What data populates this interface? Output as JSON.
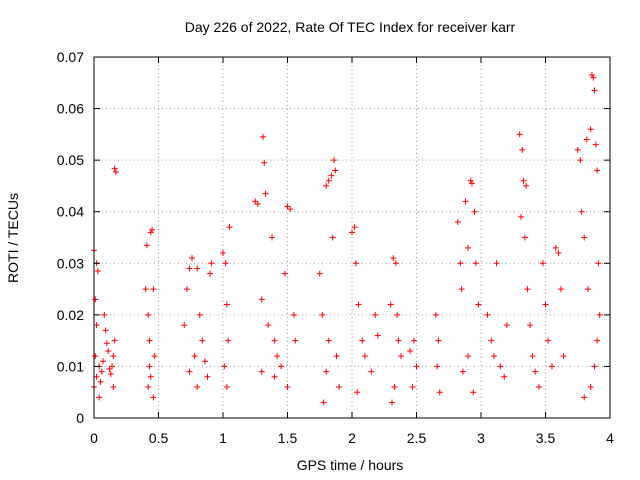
{
  "chart_data": {
    "type": "scatter",
    "title": "Day 226 of 2022, Rate Of TEC Index for receiver karr",
    "xlabel": "GPS time / hours",
    "ylabel": "ROTI / TECUs",
    "xlim": [
      0,
      4
    ],
    "ylim": [
      0,
      0.07
    ],
    "x_ticks": [
      0,
      0.5,
      1,
      1.5,
      2,
      2.5,
      3,
      3.5,
      4
    ],
    "x_tick_labels": [
      "0",
      "0.5",
      "1",
      "1.5",
      "2",
      "2.5",
      "3",
      "3.5",
      "4"
    ],
    "y_ticks": [
      0,
      0.01,
      0.02,
      0.03,
      0.04,
      0.05,
      0.06,
      0.07
    ],
    "y_tick_labels": [
      "0",
      "0.01",
      "0.02",
      "0.03",
      "0.04",
      "0.05",
      "0.06",
      "0.07"
    ],
    "grid": true,
    "marker": "plus",
    "color": "#ff0000",
    "series": [
      {
        "name": "ROTI",
        "points": [
          [
            0.0,
            0.0325
          ],
          [
            0.01,
            0.023
          ],
          [
            0.02,
            0.03
          ],
          [
            0.03,
            0.0285
          ],
          [
            0.02,
            0.018
          ],
          [
            0.01,
            0.012
          ],
          [
            0.0,
            0.006
          ],
          [
            0.02,
            0.008
          ],
          [
            0.04,
            0.01
          ],
          [
            0.05,
            0.007
          ],
          [
            0.06,
            0.009
          ],
          [
            0.07,
            0.011
          ],
          [
            0.08,
            0.02
          ],
          [
            0.09,
            0.017
          ],
          [
            0.1,
            0.0145
          ],
          [
            0.11,
            0.013
          ],
          [
            0.12,
            0.0095
          ],
          [
            0.13,
            0.0085
          ],
          [
            0.14,
            0.01
          ],
          [
            0.15,
            0.012
          ],
          [
            0.16,
            0.0484
          ],
          [
            0.17,
            0.0477
          ],
          [
            0.16,
            0.015
          ],
          [
            0.15,
            0.006
          ],
          [
            0.04,
            0.004
          ],
          [
            0.4,
            0.025
          ],
          [
            0.41,
            0.0335
          ],
          [
            0.42,
            0.02
          ],
          [
            0.43,
            0.015
          ],
          [
            0.44,
            0.036
          ],
          [
            0.45,
            0.0365
          ],
          [
            0.46,
            0.025
          ],
          [
            0.47,
            0.012
          ],
          [
            0.44,
            0.008
          ],
          [
            0.42,
            0.006
          ],
          [
            0.46,
            0.004
          ],
          [
            0.43,
            0.01
          ],
          [
            0.7,
            0.018
          ],
          [
            0.72,
            0.025
          ],
          [
            0.74,
            0.029
          ],
          [
            0.76,
            0.031
          ],
          [
            0.78,
            0.012
          ],
          [
            0.8,
            0.029
          ],
          [
            0.82,
            0.02
          ],
          [
            0.84,
            0.015
          ],
          [
            0.86,
            0.011
          ],
          [
            0.88,
            0.008
          ],
          [
            0.9,
            0.028
          ],
          [
            0.91,
            0.03
          ],
          [
            0.74,
            0.009
          ],
          [
            0.8,
            0.006
          ],
          [
            1.0,
            0.032
          ],
          [
            1.02,
            0.03
          ],
          [
            1.03,
            0.022
          ],
          [
            1.05,
            0.037
          ],
          [
            1.04,
            0.015
          ],
          [
            1.01,
            0.01
          ],
          [
            1.03,
            0.006
          ],
          [
            1.25,
            0.042
          ],
          [
            1.27,
            0.0415
          ],
          [
            1.3,
            0.023
          ],
          [
            1.31,
            0.0545
          ],
          [
            1.32,
            0.0495
          ],
          [
            1.33,
            0.0435
          ],
          [
            1.35,
            0.018
          ],
          [
            1.38,
            0.035
          ],
          [
            1.4,
            0.015
          ],
          [
            1.42,
            0.012
          ],
          [
            1.45,
            0.01
          ],
          [
            1.48,
            0.028
          ],
          [
            1.5,
            0.041
          ],
          [
            1.52,
            0.0405
          ],
          [
            1.55,
            0.02
          ],
          [
            1.56,
            0.015
          ],
          [
            1.3,
            0.009
          ],
          [
            1.4,
            0.008
          ],
          [
            1.5,
            0.006
          ],
          [
            1.75,
            0.028
          ],
          [
            1.77,
            0.02
          ],
          [
            1.8,
            0.045
          ],
          [
            1.82,
            0.046
          ],
          [
            1.84,
            0.047
          ],
          [
            1.86,
            0.05
          ],
          [
            1.87,
            0.048
          ],
          [
            1.85,
            0.035
          ],
          [
            1.82,
            0.015
          ],
          [
            1.8,
            0.009
          ],
          [
            1.78,
            0.003
          ],
          [
            1.88,
            0.012
          ],
          [
            1.9,
            0.006
          ],
          [
            2.0,
            0.036
          ],
          [
            2.02,
            0.037
          ],
          [
            2.03,
            0.03
          ],
          [
            2.05,
            0.022
          ],
          [
            2.08,
            0.015
          ],
          [
            2.1,
            0.012
          ],
          [
            2.15,
            0.009
          ],
          [
            2.18,
            0.02
          ],
          [
            2.2,
            0.016
          ],
          [
            2.04,
            0.005
          ],
          [
            2.3,
            0.022
          ],
          [
            2.32,
            0.031
          ],
          [
            2.34,
            0.03
          ],
          [
            2.35,
            0.02
          ],
          [
            2.36,
            0.015
          ],
          [
            2.38,
            0.012
          ],
          [
            2.33,
            0.006
          ],
          [
            2.31,
            0.003
          ],
          [
            2.45,
            0.013
          ],
          [
            2.48,
            0.015
          ],
          [
            2.5,
            0.01
          ],
          [
            2.47,
            0.006
          ],
          [
            2.65,
            0.02
          ],
          [
            2.67,
            0.015
          ],
          [
            2.66,
            0.01
          ],
          [
            2.68,
            0.005
          ],
          [
            2.82,
            0.038
          ],
          [
            2.84,
            0.03
          ],
          [
            2.85,
            0.025
          ],
          [
            2.88,
            0.042
          ],
          [
            2.9,
            0.033
          ],
          [
            2.92,
            0.046
          ],
          [
            2.93,
            0.0455
          ],
          [
            2.95,
            0.04
          ],
          [
            2.96,
            0.03
          ],
          [
            2.98,
            0.022
          ],
          [
            2.9,
            0.012
          ],
          [
            2.86,
            0.009
          ],
          [
            2.94,
            0.005
          ],
          [
            3.05,
            0.02
          ],
          [
            3.08,
            0.015
          ],
          [
            3.1,
            0.012
          ],
          [
            3.12,
            0.03
          ],
          [
            3.15,
            0.01
          ],
          [
            3.18,
            0.008
          ],
          [
            3.2,
            0.018
          ],
          [
            3.3,
            0.055
          ],
          [
            3.32,
            0.052
          ],
          [
            3.33,
            0.046
          ],
          [
            3.35,
            0.045
          ],
          [
            3.31,
            0.039
          ],
          [
            3.34,
            0.035
          ],
          [
            3.36,
            0.025
          ],
          [
            3.38,
            0.018
          ],
          [
            3.4,
            0.012
          ],
          [
            3.42,
            0.009
          ],
          [
            3.45,
            0.006
          ],
          [
            3.48,
            0.03
          ],
          [
            3.5,
            0.022
          ],
          [
            3.52,
            0.015
          ],
          [
            3.55,
            0.01
          ],
          [
            3.58,
            0.033
          ],
          [
            3.6,
            0.032
          ],
          [
            3.62,
            0.025
          ],
          [
            3.64,
            0.012
          ],
          [
            3.75,
            0.052
          ],
          [
            3.77,
            0.05
          ],
          [
            3.78,
            0.04
          ],
          [
            3.8,
            0.035
          ],
          [
            3.82,
            0.054
          ],
          [
            3.83,
            0.025
          ],
          [
            3.85,
            0.056
          ],
          [
            3.86,
            0.0665
          ],
          [
            3.87,
            0.066
          ],
          [
            3.88,
            0.0635
          ],
          [
            3.89,
            0.053
          ],
          [
            3.9,
            0.048
          ],
          [
            3.91,
            0.03
          ],
          [
            3.92,
            0.02
          ],
          [
            3.9,
            0.015
          ],
          [
            3.88,
            0.01
          ],
          [
            3.85,
            0.006
          ],
          [
            3.8,
            0.004
          ]
        ]
      }
    ]
  }
}
